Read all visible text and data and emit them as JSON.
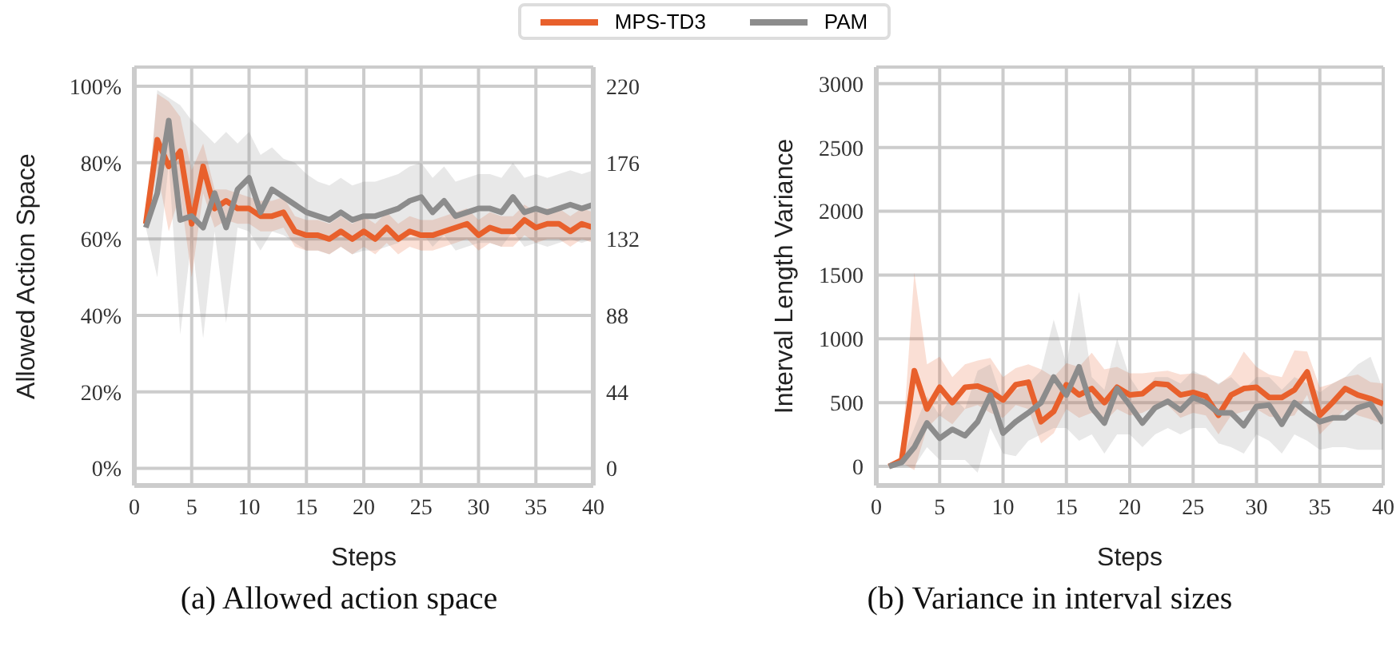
{
  "chart_data": [
    {
      "type": "line",
      "xlabel": "Steps",
      "ylabel": "Allowed Action Space",
      "annotations": [
        "(a) Allowed action space"
      ],
      "x": [
        1,
        2,
        3,
        4,
        5,
        6,
        7,
        8,
        9,
        10,
        11,
        12,
        13,
        14,
        15,
        16,
        17,
        18,
        19,
        20,
        21,
        22,
        23,
        24,
        25,
        26,
        27,
        28,
        29,
        30,
        31,
        32,
        33,
        34,
        35,
        36,
        37,
        38,
        39,
        40
      ],
      "series": [
        {
          "name": "MPS-TD3",
          "color": "#e8602c",
          "values": [
            64,
            86,
            79,
            83,
            64,
            79,
            68,
            70,
            68,
            68,
            66,
            66,
            67,
            62,
            61,
            61,
            60,
            62,
            60,
            62,
            60,
            63,
            60,
            62,
            61,
            61,
            62,
            63,
            64,
            61,
            63,
            62,
            62,
            65,
            63,
            64,
            64,
            62,
            64,
            63
          ],
          "upper": [
            64,
            98,
            96,
            92,
            78,
            85,
            73,
            73,
            72,
            71,
            70,
            70,
            71,
            66,
            65,
            65,
            64,
            66,
            64,
            66,
            64,
            67,
            64,
            66,
            65,
            65,
            66,
            67,
            68,
            65,
            67,
            66,
            66,
            69,
            67,
            68,
            68,
            66,
            68,
            67
          ],
          "lower": [
            64,
            78,
            62,
            72,
            50,
            72,
            63,
            65,
            64,
            64,
            62,
            62,
            63,
            58,
            57,
            57,
            56,
            58,
            56,
            58,
            56,
            59,
            56,
            58,
            57,
            57,
            58,
            59,
            60,
            57,
            59,
            58,
            58,
            61,
            59,
            60,
            60,
            58,
            60,
            59
          ]
        },
        {
          "name": "PAM",
          "color": "#8c8c8c",
          "values": [
            63,
            72,
            91,
            65,
            66,
            63,
            72,
            63,
            73,
            76,
            67,
            73,
            71,
            69,
            67,
            66,
            65,
            67,
            65,
            66,
            66,
            67,
            68,
            70,
            71,
            67,
            70,
            66,
            67,
            68,
            68,
            67,
            71,
            67,
            68,
            67,
            68,
            69,
            68,
            69
          ],
          "upper": [
            63,
            99,
            97,
            95,
            91,
            88,
            85,
            88,
            85,
            88,
            82,
            84,
            81,
            80,
            77,
            75,
            74,
            76,
            74,
            75,
            75,
            76,
            77,
            79,
            80,
            76,
            79,
            75,
            76,
            77,
            77,
            76,
            80,
            76,
            77,
            76,
            77,
            78,
            77,
            78
          ],
          "lower": [
            63,
            50,
            80,
            35,
            60,
            34,
            62,
            38,
            63,
            62,
            57,
            62,
            61,
            59,
            57,
            57,
            56,
            58,
            56,
            57,
            57,
            58,
            59,
            61,
            62,
            58,
            61,
            57,
            58,
            59,
            59,
            58,
            62,
            58,
            59,
            58,
            59,
            60,
            59,
            60
          ]
        }
      ],
      "xlim": [
        0,
        40
      ],
      "xticks": [
        0,
        5,
        10,
        15,
        20,
        25,
        30,
        35,
        40
      ],
      "ylim": [
        -4.5,
        105
      ],
      "yticks": [
        {
          "value": 0,
          "label": "0%"
        },
        {
          "value": 20,
          "label": "20%"
        },
        {
          "value": 40,
          "label": "40%"
        },
        {
          "value": 60,
          "label": "60%"
        },
        {
          "value": 80,
          "label": "80%"
        },
        {
          "value": 100,
          "label": "100%"
        }
      ],
      "y2lim": [
        -9.9,
        231
      ],
      "y2ticks": [
        0,
        44,
        88,
        132,
        176,
        220
      ],
      "grid": true,
      "legend": "top"
    },
    {
      "type": "line",
      "xlabel": "Steps",
      "ylabel": "Interval Length Variance",
      "annotations": [
        "(b) Variance in interval sizes"
      ],
      "x": [
        1,
        2,
        3,
        4,
        5,
        6,
        7,
        8,
        9,
        10,
        11,
        12,
        13,
        14,
        15,
        16,
        17,
        18,
        19,
        20,
        21,
        22,
        23,
        24,
        25,
        26,
        27,
        28,
        29,
        30,
        31,
        32,
        33,
        34,
        35,
        36,
        37,
        38,
        39,
        40
      ],
      "series": [
        {
          "color": "#e8602c",
          "values": [
            0,
            50,
            750,
            450,
            620,
            500,
            620,
            630,
            590,
            520,
            640,
            660,
            350,
            430,
            640,
            560,
            610,
            500,
            620,
            560,
            570,
            650,
            640,
            560,
            580,
            550,
            400,
            560,
            610,
            620,
            540,
            540,
            600,
            740,
            400,
            500,
            610,
            560,
            530,
            490
          ],
          "upper": [
            0,
            80,
            1520,
            800,
            860,
            700,
            800,
            830,
            850,
            700,
            770,
            800,
            760,
            700,
            810,
            780,
            890,
            760,
            780,
            730,
            730,
            740,
            750,
            720,
            730,
            710,
            640,
            720,
            900,
            780,
            720,
            700,
            910,
            900,
            620,
            650,
            700,
            720,
            660,
            650
          ],
          "lower": [
            0,
            30,
            -30,
            300,
            400,
            330,
            450,
            480,
            420,
            380,
            480,
            450,
            180,
            260,
            450,
            380,
            420,
            350,
            450,
            400,
            420,
            470,
            480,
            380,
            420,
            400,
            250,
            400,
            430,
            450,
            390,
            380,
            400,
            560,
            250,
            350,
            450,
            400,
            370,
            330
          ]
        },
        {
          "color": "#8c8c8c",
          "values": [
            0,
            30,
            150,
            340,
            220,
            290,
            240,
            350,
            560,
            260,
            350,
            420,
            500,
            700,
            560,
            780,
            460,
            340,
            610,
            480,
            340,
            460,
            510,
            440,
            540,
            500,
            420,
            420,
            320,
            470,
            480,
            330,
            500,
            420,
            350,
            380,
            380,
            460,
            490,
            340
          ],
          "upper": [
            0,
            60,
            300,
            550,
            400,
            550,
            450,
            750,
            800,
            500,
            600,
            650,
            750,
            1150,
            800,
            1370,
            700,
            600,
            1000,
            700,
            550,
            700,
            700,
            650,
            750,
            700,
            650,
            700,
            600,
            700,
            700,
            600,
            700,
            650,
            580,
            650,
            700,
            800,
            860,
            600
          ],
          "lower": [
            0,
            0,
            0,
            150,
            50,
            50,
            50,
            -50,
            300,
            100,
            80,
            200,
            250,
            300,
            300,
            200,
            250,
            100,
            250,
            250,
            150,
            250,
            300,
            250,
            300,
            300,
            180,
            150,
            100,
            250,
            200,
            100,
            250,
            200,
            130,
            150,
            150,
            130,
            130,
            130
          ]
        }
      ],
      "xlim": [
        0,
        40
      ],
      "xticks": [
        0,
        5,
        10,
        15,
        20,
        25,
        30,
        35,
        40
      ],
      "ylim": [
        -150,
        3130
      ],
      "yticks": [
        0,
        500,
        1000,
        1500,
        2000,
        2500,
        3000
      ],
      "grid": true
    }
  ]
}
